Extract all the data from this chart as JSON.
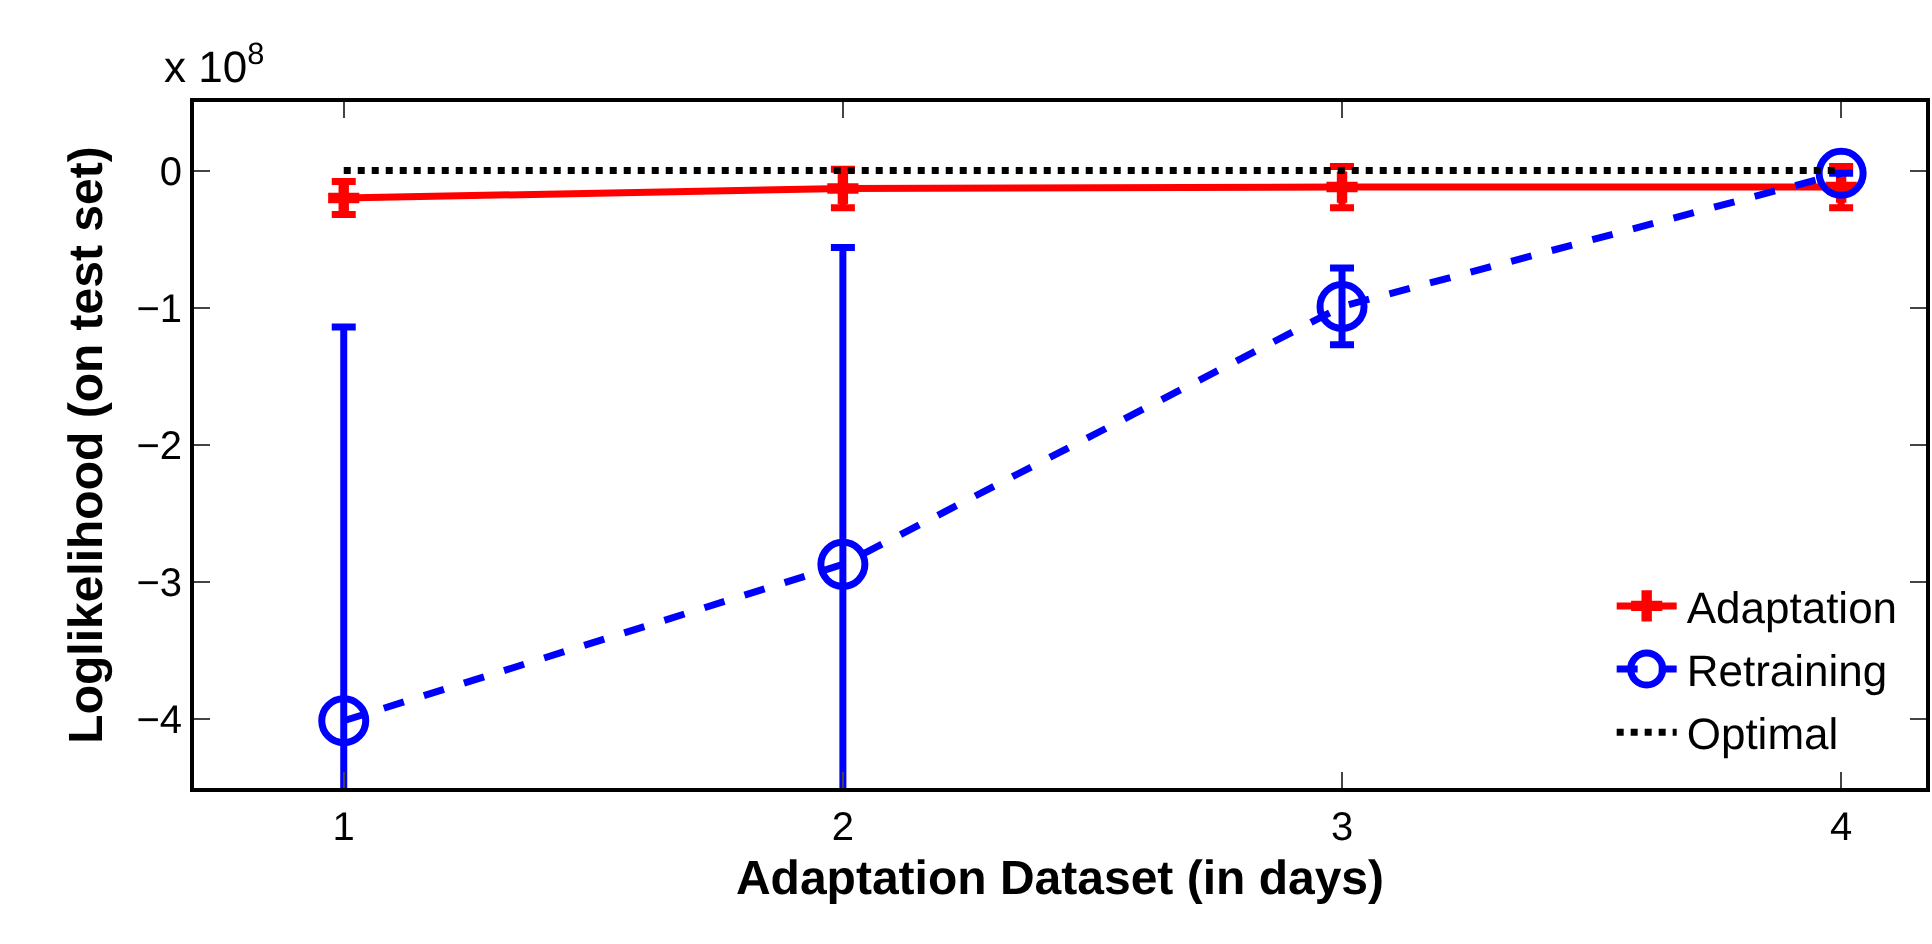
{
  "chart_data": {
    "type": "line",
    "xlabel": "Adaptation Dataset (in days)",
    "ylabel": "Loglikelihood (on test set)",
    "x": [
      1,
      2,
      3,
      4
    ],
    "series": [
      {
        "name": "Adaptation",
        "color": "#ff0000",
        "values": [
          -0.2,
          -0.13,
          -0.12,
          -0.12
        ],
        "errors": [
          0.12,
          0.14,
          0.15,
          0.15
        ],
        "marker": "cross",
        "line_style": "solid"
      },
      {
        "name": "Retraining",
        "color": "#0000ff",
        "values": [
          -4.01,
          -2.87,
          -0.99,
          -0.02
        ],
        "errors": [
          2.87,
          2.31,
          0.28,
          null
        ],
        "marker": "circle",
        "line_style": "dashed"
      },
      {
        "name": "Optimal",
        "color": "#000000",
        "values": [
          0,
          0,
          0,
          0
        ],
        "marker": "none",
        "line_style": "dotted"
      }
    ],
    "xlim": [
      0.7,
      4.17
    ],
    "xticks": [
      1,
      2,
      3,
      4
    ],
    "ylim": [
      -4.5,
      0.5
    ],
    "yticks": [
      -4,
      -3,
      -2,
      -1,
      0
    ],
    "annotations": [
      "x 10$^{8}$"
    ],
    "grid": false,
    "legend": "bottom right"
  }
}
